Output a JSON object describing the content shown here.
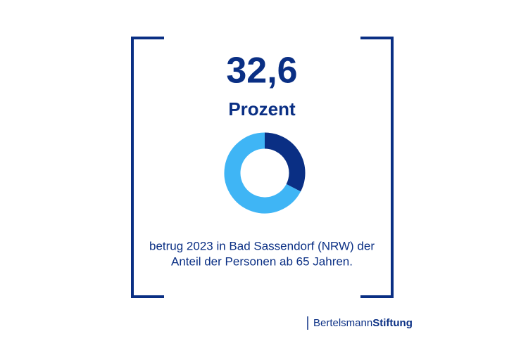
{
  "chart_data": {
    "type": "donut",
    "values": [
      32.6,
      67.4
    ],
    "value_labels": [
      "32,6",
      null
    ],
    "colors": [
      "#0a2f84",
      "#3fb5f5"
    ],
    "unit": "Prozent",
    "caption": [
      "betrug 2023 in Bad Sassendorf (NRW) der",
      "Anteil der Personen ab 65 Jahren."
    ]
  },
  "brand": {
    "name": "Bertelsmann",
    "suffix": "Stiftung"
  }
}
